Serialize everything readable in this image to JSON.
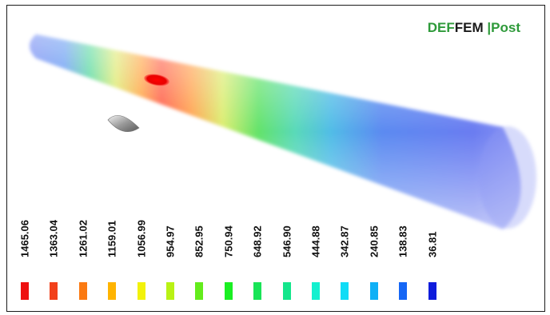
{
  "logo": {
    "part1": "DEF",
    "part2": "FEM",
    "part3": " |Post"
  },
  "legend": [
    {
      "value": "1465.06",
      "color": "#ee1111"
    },
    {
      "value": "1363.04",
      "color": "#f2401a"
    },
    {
      "value": "1261.02",
      "color": "#fb7a12"
    },
    {
      "value": "1159.01",
      "color": "#ffb400"
    },
    {
      "value": "1056.99",
      "color": "#f2f20a"
    },
    {
      "value": "954.97",
      "color": "#b9f214"
    },
    {
      "value": "852.95",
      "color": "#63ec1c"
    },
    {
      "value": "750.94",
      "color": "#1aef22"
    },
    {
      "value": "648.92",
      "color": "#19e457"
    },
    {
      "value": "546.90",
      "color": "#14e68c"
    },
    {
      "value": "444.88",
      "color": "#13f0cf"
    },
    {
      "value": "342.87",
      "color": "#10dcf6"
    },
    {
      "value": "240.85",
      "color": "#0fb0f6"
    },
    {
      "value": "138.83",
      "color": "#1566f5"
    },
    {
      "value": "36.81",
      "color": "#0f1cdc"
    }
  ]
}
